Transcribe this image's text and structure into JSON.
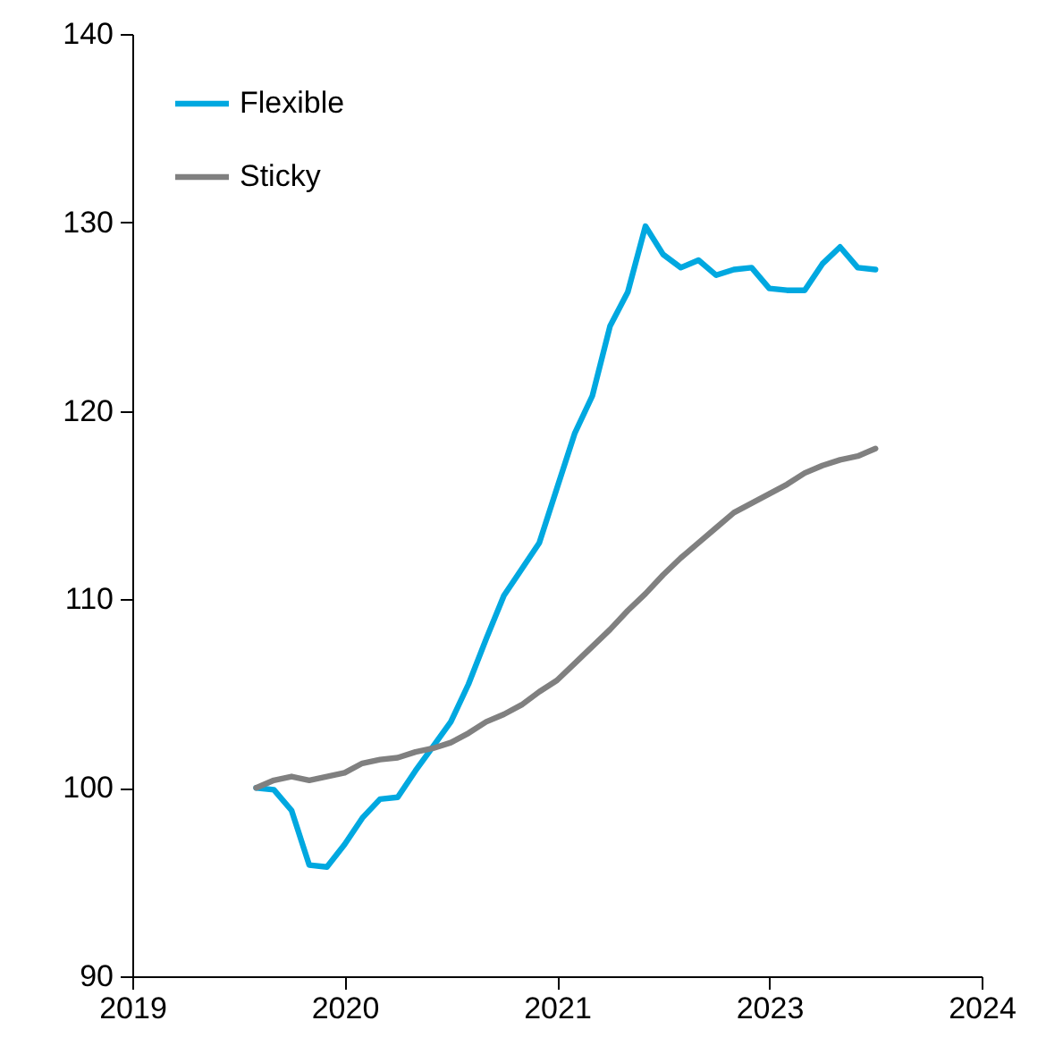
{
  "chart_data": {
    "type": "line",
    "legend": "top left",
    "grid": false,
    "line_style": "solid",
    "marker": "none",
    "categories": [
      "2019",
      null,
      null,
      null,
      null,
      null,
      null,
      null,
      null,
      null,
      null,
      null,
      "2020",
      null,
      null,
      null,
      null,
      null,
      null,
      null,
      null,
      null,
      null,
      null,
      "2021",
      null,
      null,
      null,
      null,
      null,
      null,
      null,
      null,
      null,
      null,
      null,
      "2023",
      null,
      null,
      null,
      null,
      null,
      null,
      null,
      null,
      null,
      null,
      null,
      "2024"
    ],
    "ylim": [
      90,
      140
    ],
    "yticks": [
      90,
      100,
      110,
      120,
      130,
      140
    ],
    "series": [
      {
        "name": "Flexible",
        "color": "#00a8e0",
        "values": [
          null,
          null,
          null,
          null,
          null,
          null,
          null,
          100.0,
          99.9,
          98.8,
          95.9,
          95.8,
          97.0,
          98.4,
          99.4,
          99.5,
          100.9,
          102.2,
          103.5,
          105.5,
          107.9,
          110.2,
          111.6,
          113.0,
          115.9,
          118.8,
          120.8,
          124.5,
          126.3,
          129.8,
          128.3,
          127.6,
          128.0,
          127.2,
          127.5,
          127.6,
          126.5,
          126.4,
          126.4,
          127.8,
          128.7,
          127.6,
          127.5,
          null,
          null,
          null,
          null,
          null,
          null
        ]
      },
      {
        "name": "Sticky",
        "color": "#808080",
        "values": [
          null,
          null,
          null,
          null,
          null,
          null,
          null,
          100.0,
          100.4,
          100.6,
          100.4,
          100.6,
          100.8,
          101.3,
          101.5,
          101.6,
          101.9,
          102.1,
          102.4,
          102.9,
          103.5,
          103.9,
          104.4,
          105.1,
          105.7,
          106.6,
          107.5,
          108.4,
          109.4,
          110.3,
          111.3,
          112.2,
          113.0,
          113.8,
          114.6,
          115.1,
          115.6,
          116.1,
          116.7,
          117.1,
          117.4,
          117.6,
          118.0,
          null,
          null,
          null,
          null,
          null,
          null
        ]
      }
    ]
  }
}
